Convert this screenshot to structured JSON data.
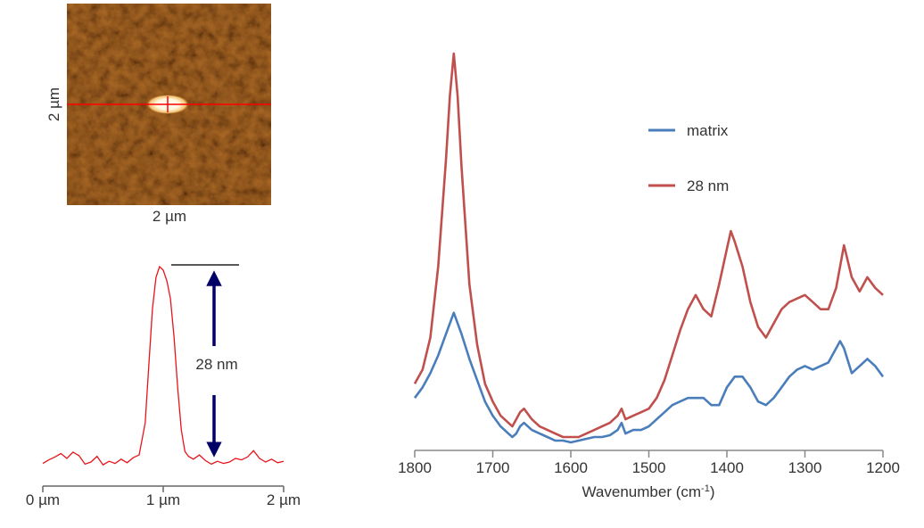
{
  "afm_image": {
    "x_label": "2 µm",
    "y_label": "2 µm",
    "colormap": [
      "#5a2200",
      "#a0480a",
      "#cc7a1e"
    ],
    "line_color": "#ff0000"
  },
  "chart_data": [
    {
      "type": "line",
      "title": "",
      "xlabel": "",
      "ylabel": "",
      "x_ticks": [
        "0 µm",
        "1 µm",
        "2 µm"
      ],
      "xlim": [
        0,
        2
      ],
      "ylim": [
        0,
        30
      ],
      "color": "#e8141b",
      "series": [
        {
          "x": [
            0.0,
            0.05,
            0.1,
            0.15,
            0.2,
            0.25,
            0.3,
            0.35,
            0.4,
            0.45,
            0.5,
            0.55,
            0.6,
            0.65,
            0.7,
            0.75,
            0.8,
            0.85,
            0.88,
            0.91,
            0.94,
            0.97,
            1.0,
            1.03,
            1.06,
            1.09,
            1.12,
            1.15,
            1.18,
            1.21,
            1.25,
            1.3,
            1.35,
            1.4,
            1.45,
            1.5,
            1.55,
            1.6,
            1.65,
            1.7,
            1.75,
            1.8,
            1.85,
            1.9,
            1.95,
            2.0
          ],
          "values": [
            0.3,
            0.8,
            1.2,
            1.7,
            1.0,
            1.9,
            1.4,
            0.2,
            0.5,
            1.3,
            0.1,
            0.6,
            0.3,
            0.9,
            0.4,
            1.1,
            1.5,
            6.0,
            14.0,
            22.0,
            26.5,
            28.0,
            27.5,
            26.0,
            23.5,
            18.0,
            11.0,
            5.0,
            2.0,
            1.3,
            0.9,
            1.5,
            0.7,
            0.2,
            0.6,
            0.3,
            0.5,
            1.0,
            0.8,
            1.2,
            2.1,
            1.0,
            0.5,
            0.9,
            0.4,
            0.6
          ]
        }
      ],
      "annotations": [
        {
          "text": "28 nm",
          "kind": "height-arrow"
        }
      ],
      "annotation_color": "#000066"
    },
    {
      "type": "line",
      "title": "",
      "xlabel": "Wavenumber (cm",
      "xlabel_sup": "-1",
      "xlabel_end": ")",
      "ylabel": "",
      "xlim": [
        1800,
        1200
      ],
      "ylim": [
        0,
        1
      ],
      "x_ticks": [
        "1800",
        "1700",
        "1600",
        "1500",
        "1400",
        "1300",
        "1200"
      ],
      "legend": "upper-middle",
      "series": [
        {
          "name": "matrix",
          "color": "#4a7ebb",
          "x": [
            1800,
            1790,
            1780,
            1770,
            1760,
            1750,
            1740,
            1730,
            1720,
            1710,
            1700,
            1690,
            1680,
            1675,
            1670,
            1665,
            1660,
            1650,
            1640,
            1630,
            1620,
            1610,
            1600,
            1590,
            1580,
            1570,
            1560,
            1550,
            1540,
            1535,
            1530,
            1520,
            1510,
            1500,
            1490,
            1480,
            1470,
            1460,
            1450,
            1440,
            1430,
            1420,
            1410,
            1400,
            1390,
            1380,
            1370,
            1360,
            1350,
            1340,
            1330,
            1320,
            1310,
            1300,
            1290,
            1280,
            1270,
            1260,
            1255,
            1250,
            1240,
            1230,
            1220,
            1210,
            1200
          ],
          "values": [
            0.13,
            0.16,
            0.2,
            0.25,
            0.31,
            0.37,
            0.31,
            0.24,
            0.18,
            0.12,
            0.08,
            0.05,
            0.03,
            0.02,
            0.03,
            0.05,
            0.06,
            0.04,
            0.03,
            0.02,
            0.01,
            0.01,
            0.005,
            0.01,
            0.015,
            0.02,
            0.02,
            0.025,
            0.04,
            0.06,
            0.03,
            0.04,
            0.04,
            0.05,
            0.07,
            0.09,
            0.11,
            0.12,
            0.13,
            0.13,
            0.13,
            0.11,
            0.11,
            0.16,
            0.19,
            0.19,
            0.16,
            0.12,
            0.11,
            0.13,
            0.16,
            0.19,
            0.21,
            0.22,
            0.21,
            0.22,
            0.23,
            0.27,
            0.29,
            0.27,
            0.2,
            0.22,
            0.24,
            0.22,
            0.19
          ]
        },
        {
          "name": "28 nm",
          "color": "#c0504d",
          "x": [
            1800,
            1790,
            1780,
            1770,
            1760,
            1755,
            1750,
            1745,
            1740,
            1730,
            1720,
            1710,
            1700,
            1690,
            1680,
            1675,
            1670,
            1665,
            1660,
            1650,
            1640,
            1630,
            1620,
            1610,
            1600,
            1590,
            1580,
            1570,
            1560,
            1550,
            1540,
            1535,
            1530,
            1520,
            1510,
            1500,
            1490,
            1480,
            1470,
            1460,
            1450,
            1440,
            1430,
            1420,
            1410,
            1400,
            1395,
            1390,
            1380,
            1370,
            1360,
            1350,
            1340,
            1330,
            1320,
            1310,
            1300,
            1290,
            1280,
            1270,
            1260,
            1255,
            1250,
            1240,
            1230,
            1220,
            1210,
            1200
          ],
          "values": [
            0.17,
            0.21,
            0.3,
            0.5,
            0.8,
            0.98,
            1.1,
            0.98,
            0.78,
            0.45,
            0.28,
            0.17,
            0.12,
            0.08,
            0.06,
            0.05,
            0.07,
            0.09,
            0.1,
            0.07,
            0.05,
            0.04,
            0.03,
            0.02,
            0.02,
            0.02,
            0.03,
            0.04,
            0.05,
            0.06,
            0.08,
            0.1,
            0.07,
            0.08,
            0.09,
            0.1,
            0.13,
            0.18,
            0.25,
            0.32,
            0.38,
            0.42,
            0.38,
            0.36,
            0.45,
            0.55,
            0.6,
            0.57,
            0.5,
            0.4,
            0.33,
            0.3,
            0.34,
            0.38,
            0.4,
            0.41,
            0.42,
            0.4,
            0.38,
            0.38,
            0.44,
            0.5,
            0.56,
            0.47,
            0.43,
            0.47,
            0.44,
            0.42
          ]
        }
      ]
    }
  ]
}
